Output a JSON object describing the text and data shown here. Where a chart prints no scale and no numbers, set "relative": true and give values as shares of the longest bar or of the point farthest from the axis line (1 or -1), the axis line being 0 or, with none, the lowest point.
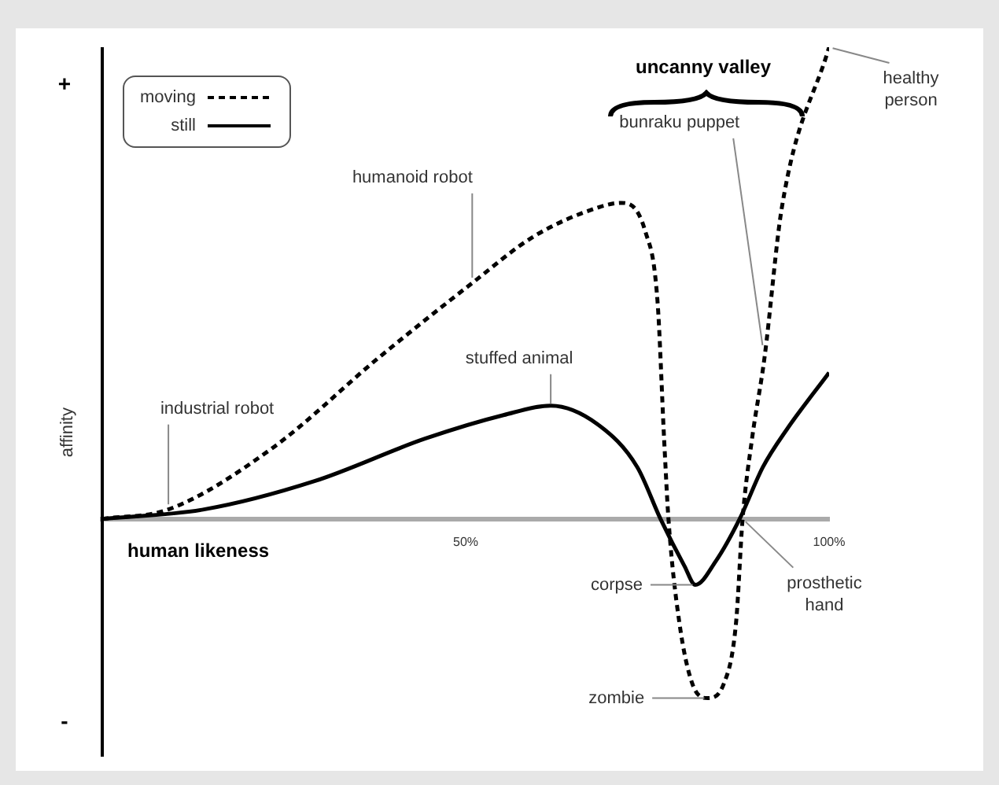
{
  "chart_data": {
    "type": "line",
    "xlabel": "human likeness",
    "ylabel": "affinity",
    "relative": true,
    "xlim": [
      0,
      100
    ],
    "xticks": [
      {
        "value": 50,
        "label": "50%"
      },
      {
        "value": 100,
        "label": "100%"
      }
    ],
    "legend": "top left",
    "marker": "none",
    "grid": false,
    "series": [
      {
        "name": "moving",
        "color": "#000000",
        "line_style": "dashed",
        "x": [
          0,
          9.1,
          23.4,
          37.9,
          50.9,
          59.5,
          68.2,
          71.4,
          74.7,
          76.4,
          77.3,
          77.9,
          79.4,
          81.2,
          83.3,
          85.5,
          87.2,
          88.1,
          89.4,
          91.1,
          93.5,
          100
        ],
        "values": [
          0,
          0.02,
          0.15,
          0.34,
          0.5,
          0.6,
          0.66,
          0.67,
          0.61,
          0.46,
          0.17,
          0,
          -0.22,
          -0.35,
          -0.38,
          -0.35,
          -0.22,
          0,
          0.17,
          0.34,
          0.66,
          1
        ]
      },
      {
        "name": "still",
        "color": "#000000",
        "line_style": "solid",
        "x": [
          0,
          14,
          29.2,
          44.4,
          55.2,
          61.7,
          68.2,
          73.6,
          76.8,
          80.1,
          81.6,
          84.4,
          87.7,
          90.9,
          94.2,
          100
        ],
        "values": [
          0,
          0.02,
          0.08,
          0.17,
          0.22,
          0.24,
          0.2,
          0.11,
          0,
          -0.1,
          -0.14,
          -0.09,
          0,
          0.11,
          0.19,
          0.31
        ]
      }
    ],
    "annotations": [
      "+",
      "-",
      "uncanny valley",
      {
        "text": "industrial robot",
        "x": 9.1,
        "y": 0.02
      },
      {
        "text": "humanoid robot",
        "x": 50.9,
        "y": 0.5
      },
      {
        "text": "stuffed animal",
        "x": 61.7,
        "y": 0.24
      },
      {
        "text": "bunraku puppet",
        "x": 91.1,
        "y": 0.34
      },
      {
        "text": "healthy person",
        "x": 100,
        "y": 1
      },
      {
        "text": "corpse",
        "x": 81.6,
        "y": -0.14
      },
      {
        "text": "zombie",
        "x": 83.3,
        "y": -0.38
      },
      {
        "text": "prosthetic hand",
        "x": 88.1,
        "y": 0
      }
    ]
  }
}
